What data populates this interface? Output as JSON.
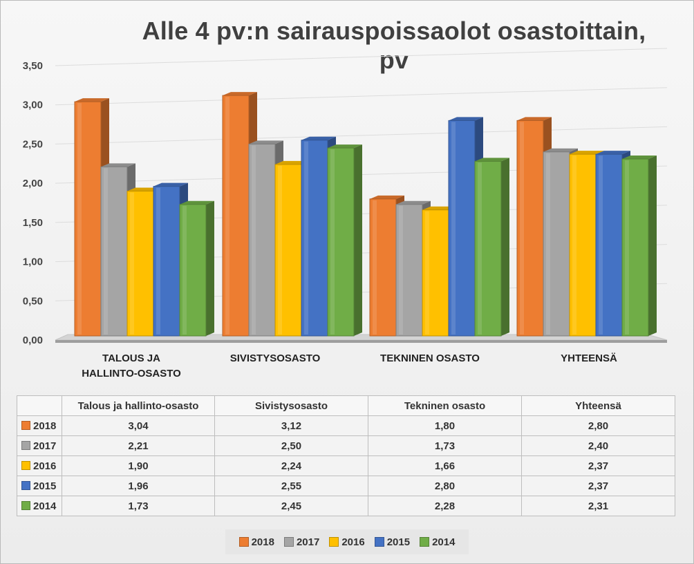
{
  "chart_data": {
    "type": "bar",
    "title": "Alle 4 pv:n sairauspoissaolot osastoittain, pv",
    "categories": [
      "TALOUS JA HALLINTO-OSASTO",
      "SIVISTYSOSASTO",
      "TEKNINEN OSASTO",
      "YHTEENSÄ"
    ],
    "category_lines": [
      [
        "TALOUS JA",
        "HALLINTO-OSASTO"
      ],
      [
        "SIVISTYSOSASTO"
      ],
      [
        "TEKNINEN OSASTO"
      ],
      [
        "YHTEENSÄ"
      ]
    ],
    "table_headers": [
      "Talous ja hallinto-osasto",
      "Sivistysosasto",
      "Tekninen osasto",
      "Yhteensä"
    ],
    "y_ticks": [
      "0,00",
      "0,50",
      "1,00",
      "1,50",
      "2,00",
      "2,50",
      "3,00",
      "3,50"
    ],
    "ylim": [
      0,
      3.5
    ],
    "grid": true,
    "legend_position": "bottom",
    "series": [
      {
        "name": "2018",
        "values": [
          3.04,
          3.12,
          1.8,
          2.8
        ],
        "labels": [
          "3,04",
          "3,12",
          "1,80",
          "2,80"
        ],
        "color": "#ED7D31"
      },
      {
        "name": "2017",
        "values": [
          2.21,
          2.5,
          1.73,
          2.4
        ],
        "labels": [
          "2,21",
          "2,50",
          "1,73",
          "2,40"
        ],
        "color": "#A5A5A5"
      },
      {
        "name": "2016",
        "values": [
          1.9,
          2.24,
          1.66,
          2.37
        ],
        "labels": [
          "1,90",
          "2,24",
          "1,66",
          "2,37"
        ],
        "color": "#FFC000"
      },
      {
        "name": "2015",
        "values": [
          1.96,
          2.55,
          2.8,
          2.37
        ],
        "labels": [
          "1,96",
          "2,55",
          "2,80",
          "2,37"
        ],
        "color": "#4472C4"
      },
      {
        "name": "2014",
        "values": [
          1.73,
          2.45,
          2.28,
          2.31
        ],
        "labels": [
          "1,73",
          "2,45",
          "2,28",
          "2,31"
        ],
        "color": "#70AD47"
      }
    ]
  }
}
